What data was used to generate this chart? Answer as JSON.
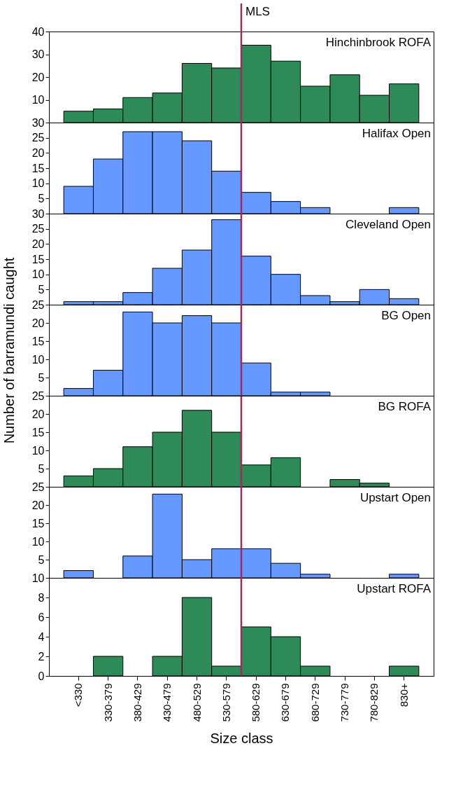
{
  "chart_data": [
    {
      "type": "bar",
      "title": "Hinchinbrook ROFA",
      "categories": [
        "<330",
        "330-379",
        "380-429",
        "430-479",
        "480-529",
        "530-579",
        "580-629",
        "630-679",
        "680-729",
        "730-779",
        "780-829",
        "830+"
      ],
      "values": [
        5,
        6,
        11,
        13,
        26,
        24,
        34,
        27,
        16,
        21,
        12,
        17
      ],
      "color": "#2e8b57",
      "ylim": [
        0,
        40
      ],
      "yticks": [
        10,
        20,
        30,
        40
      ],
      "tick_labels": "y",
      "ref_lines": [
        {
          "axis": "x",
          "value": "580-629",
          "label": "MLS",
          "color": "#9b2d5e"
        }
      ]
    },
    {
      "type": "bar",
      "title": "Halifax Open",
      "categories": [
        "<330",
        "330-379",
        "380-429",
        "430-479",
        "480-529",
        "530-579",
        "580-629",
        "630-679",
        "680-729",
        "730-779",
        "780-829",
        "830+"
      ],
      "values": [
        9,
        18,
        27,
        27,
        24,
        14,
        7,
        4,
        2,
        0,
        0,
        2
      ],
      "color": "#6699ff",
      "ylim": [
        0,
        30
      ],
      "yticks": [
        5,
        10,
        15,
        20,
        25,
        30
      ],
      "tick_labels": "y",
      "ref_lines": [
        {
          "axis": "x",
          "value": "580-629",
          "color": "#9b2d5e"
        }
      ]
    },
    {
      "type": "bar",
      "title": "Cleveland Open",
      "categories": [
        "<330",
        "330-379",
        "380-429",
        "430-479",
        "480-529",
        "530-579",
        "580-629",
        "630-679",
        "680-729",
        "730-779",
        "780-829",
        "830+"
      ],
      "values": [
        1,
        1,
        4,
        12,
        18,
        28,
        16,
        10,
        3,
        1,
        5,
        2
      ],
      "color": "#6699ff",
      "ylim": [
        0,
        30
      ],
      "yticks": [
        5,
        10,
        15,
        20,
        25,
        30
      ],
      "tick_labels": "y",
      "ref_lines": [
        {
          "axis": "x",
          "value": "580-629",
          "color": "#9b2d5e"
        }
      ]
    },
    {
      "type": "bar",
      "title": "BG Open",
      "ylabel": "Number of barramundi caught",
      "categories": [
        "<330",
        "330-379",
        "380-429",
        "430-479",
        "480-529",
        "530-579",
        "580-629",
        "630-679",
        "680-729",
        "730-779",
        "780-829",
        "830+"
      ],
      "values": [
        2,
        7,
        23,
        20,
        22,
        20,
        9,
        1,
        1,
        0,
        0,
        0
      ],
      "color": "#6699ff",
      "ylim": [
        0,
        25
      ],
      "yticks": [
        5,
        10,
        15,
        20,
        25
      ],
      "tick_labels": "y",
      "ref_lines": [
        {
          "axis": "x",
          "value": "580-629",
          "color": "#9b2d5e"
        }
      ]
    },
    {
      "type": "bar",
      "title": "BG ROFA",
      "categories": [
        "<330",
        "330-379",
        "380-429",
        "430-479",
        "480-529",
        "530-579",
        "580-629",
        "630-679",
        "680-729",
        "730-779",
        "780-829",
        "830+"
      ],
      "values": [
        3,
        5,
        11,
        15,
        21,
        15,
        6,
        8,
        0,
        2,
        1,
        0
      ],
      "color": "#2e8b57",
      "ylim": [
        0,
        25
      ],
      "yticks": [
        5,
        10,
        15,
        20,
        25
      ],
      "tick_labels": "y",
      "ref_lines": [
        {
          "axis": "x",
          "value": "580-629",
          "color": "#9b2d5e"
        }
      ]
    },
    {
      "type": "bar",
      "title": "Upstart Open",
      "categories": [
        "<330",
        "330-379",
        "380-429",
        "430-479",
        "480-529",
        "530-579",
        "580-629",
        "630-679",
        "680-729",
        "730-779",
        "780-829",
        "830+"
      ],
      "values": [
        2,
        0,
        6,
        23,
        5,
        8,
        8,
        4,
        1,
        0,
        0,
        1
      ],
      "color": "#6699ff",
      "ylim": [
        0,
        25
      ],
      "yticks": [
        5,
        10,
        15,
        20,
        25
      ],
      "tick_labels": "y",
      "ref_lines": [
        {
          "axis": "x",
          "value": "580-629",
          "color": "#9b2d5e"
        }
      ]
    },
    {
      "type": "bar",
      "title": "Upstart ROFA",
      "xlabel": "Size class",
      "categories": [
        "<330",
        "330-379",
        "380-429",
        "430-479",
        "480-529",
        "530-579",
        "580-629",
        "630-679",
        "680-729",
        "730-779",
        "780-829",
        "830+"
      ],
      "values": [
        0,
        2,
        0,
        2,
        8,
        1,
        5,
        4,
        1,
        0,
        0,
        1
      ],
      "color": "#2e8b57",
      "ylim": [
        0,
        10
      ],
      "yticks": [
        0,
        2,
        4,
        6,
        8,
        10
      ],
      "ref_lines": [
        {
          "axis": "x",
          "value": "580-629",
          "color": "#9b2d5e"
        }
      ]
    }
  ]
}
